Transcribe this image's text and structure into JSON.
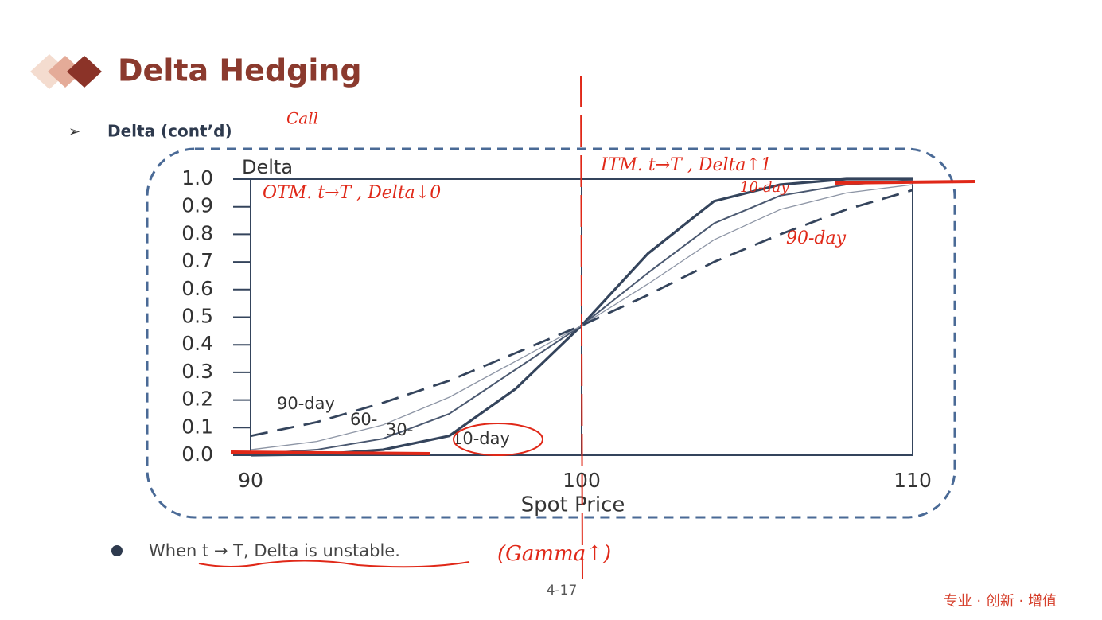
{
  "header": {
    "title": "Delta Hedging",
    "subtitle": "Delta (cont’d)"
  },
  "chart_data": {
    "type": "line",
    "x_label": "Spot Price",
    "y_label": "Delta",
    "x": [
      90,
      92,
      94,
      96,
      98,
      100,
      102,
      104,
      106,
      108,
      110
    ],
    "series": [
      {
        "name": "10-day",
        "color": "#34445c",
        "line_style": "solid",
        "values": [
          0,
          0.003,
          0.02,
          0.07,
          0.24,
          0.47,
          0.73,
          0.92,
          0.98,
          1.0,
          1.0
        ]
      },
      {
        "name": "30-day",
        "color": "#4a5870",
        "line_style": "solid",
        "values": [
          0.005,
          0.02,
          0.06,
          0.15,
          0.31,
          0.47,
          0.66,
          0.84,
          0.94,
          0.98,
          0.995
        ]
      },
      {
        "name": "60-day",
        "color": "#8d95a5",
        "line_style": "solid",
        "values": [
          0.02,
          0.05,
          0.11,
          0.21,
          0.34,
          0.47,
          0.62,
          0.78,
          0.89,
          0.95,
          0.98
        ]
      },
      {
        "name": "90-day",
        "color": "#34445c",
        "line_style": "dashed",
        "values": [
          0.07,
          0.12,
          0.19,
          0.27,
          0.37,
          0.47,
          0.58,
          0.7,
          0.8,
          0.89,
          0.96
        ]
      }
    ],
    "curve_labels": [
      "90-day",
      "60-",
      "30-",
      "10-day"
    ],
    "vline": 100,
    "xlim": [
      90,
      110
    ],
    "xticks": [
      90,
      100,
      110
    ],
    "ylim": [
      0,
      1
    ],
    "yticks": [
      {
        "value": 0,
        "label": "0.0"
      },
      0.1,
      0.2,
      0.3,
      0.4,
      0.5,
      0.6,
      0.7,
      0.8,
      0.9,
      {
        "value": 1,
        "label": "1.0"
      }
    ]
  },
  "bullet": "When t → T, Delta is unstable.",
  "handwriting": [
    "Call",
    "OTM. t→T , Delta↓0",
    "ITM. t→T , Delta↑1",
    "10-day",
    "90-day",
    "(Gamma↑)"
  ],
  "page_number": "4-17",
  "footer": "专业 · 创新 · 增值"
}
